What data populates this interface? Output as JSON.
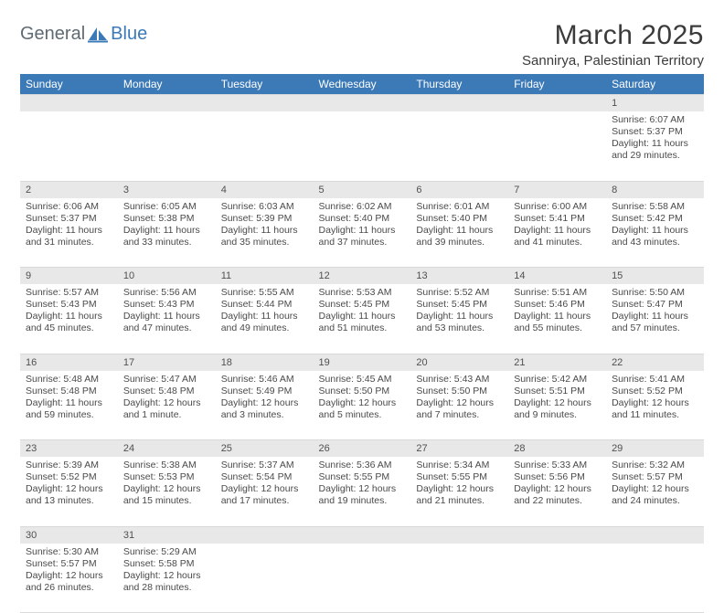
{
  "logo": {
    "text1": "General",
    "text2": "Blue",
    "brand_color": "#3b79b7",
    "gray_color": "#5f6a72"
  },
  "title": "March 2025",
  "location": "Sannirya, Palestinian Territory",
  "header_color": "#3b79b7",
  "header_text_color": "#ffffff",
  "day_label_bg": "#e8e8e8",
  "border_color": "#d9d9d9",
  "text_color": "#4a4a4a",
  "days_of_week": [
    "Sunday",
    "Monday",
    "Tuesday",
    "Wednesday",
    "Thursday",
    "Friday",
    "Saturday"
  ],
  "weeks": [
    [
      null,
      null,
      null,
      null,
      null,
      null,
      {
        "n": "1",
        "sunrise": "6:07 AM",
        "sunset": "5:37 PM",
        "daylight": "11 hours and 29 minutes."
      }
    ],
    [
      {
        "n": "2",
        "sunrise": "6:06 AM",
        "sunset": "5:37 PM",
        "daylight": "11 hours and 31 minutes."
      },
      {
        "n": "3",
        "sunrise": "6:05 AM",
        "sunset": "5:38 PM",
        "daylight": "11 hours and 33 minutes."
      },
      {
        "n": "4",
        "sunrise": "6:03 AM",
        "sunset": "5:39 PM",
        "daylight": "11 hours and 35 minutes."
      },
      {
        "n": "5",
        "sunrise": "6:02 AM",
        "sunset": "5:40 PM",
        "daylight": "11 hours and 37 minutes."
      },
      {
        "n": "6",
        "sunrise": "6:01 AM",
        "sunset": "5:40 PM",
        "daylight": "11 hours and 39 minutes."
      },
      {
        "n": "7",
        "sunrise": "6:00 AM",
        "sunset": "5:41 PM",
        "daylight": "11 hours and 41 minutes."
      },
      {
        "n": "8",
        "sunrise": "5:58 AM",
        "sunset": "5:42 PM",
        "daylight": "11 hours and 43 minutes."
      }
    ],
    [
      {
        "n": "9",
        "sunrise": "5:57 AM",
        "sunset": "5:43 PM",
        "daylight": "11 hours and 45 minutes."
      },
      {
        "n": "10",
        "sunrise": "5:56 AM",
        "sunset": "5:43 PM",
        "daylight": "11 hours and 47 minutes."
      },
      {
        "n": "11",
        "sunrise": "5:55 AM",
        "sunset": "5:44 PM",
        "daylight": "11 hours and 49 minutes."
      },
      {
        "n": "12",
        "sunrise": "5:53 AM",
        "sunset": "5:45 PM",
        "daylight": "11 hours and 51 minutes."
      },
      {
        "n": "13",
        "sunrise": "5:52 AM",
        "sunset": "5:45 PM",
        "daylight": "11 hours and 53 minutes."
      },
      {
        "n": "14",
        "sunrise": "5:51 AM",
        "sunset": "5:46 PM",
        "daylight": "11 hours and 55 minutes."
      },
      {
        "n": "15",
        "sunrise": "5:50 AM",
        "sunset": "5:47 PM",
        "daylight": "11 hours and 57 minutes."
      }
    ],
    [
      {
        "n": "16",
        "sunrise": "5:48 AM",
        "sunset": "5:48 PM",
        "daylight": "11 hours and 59 minutes."
      },
      {
        "n": "17",
        "sunrise": "5:47 AM",
        "sunset": "5:48 PM",
        "daylight": "12 hours and 1 minute."
      },
      {
        "n": "18",
        "sunrise": "5:46 AM",
        "sunset": "5:49 PM",
        "daylight": "12 hours and 3 minutes."
      },
      {
        "n": "19",
        "sunrise": "5:45 AM",
        "sunset": "5:50 PM",
        "daylight": "12 hours and 5 minutes."
      },
      {
        "n": "20",
        "sunrise": "5:43 AM",
        "sunset": "5:50 PM",
        "daylight": "12 hours and 7 minutes."
      },
      {
        "n": "21",
        "sunrise": "5:42 AM",
        "sunset": "5:51 PM",
        "daylight": "12 hours and 9 minutes."
      },
      {
        "n": "22",
        "sunrise": "5:41 AM",
        "sunset": "5:52 PM",
        "daylight": "12 hours and 11 minutes."
      }
    ],
    [
      {
        "n": "23",
        "sunrise": "5:39 AM",
        "sunset": "5:52 PM",
        "daylight": "12 hours and 13 minutes."
      },
      {
        "n": "24",
        "sunrise": "5:38 AM",
        "sunset": "5:53 PM",
        "daylight": "12 hours and 15 minutes."
      },
      {
        "n": "25",
        "sunrise": "5:37 AM",
        "sunset": "5:54 PM",
        "daylight": "12 hours and 17 minutes."
      },
      {
        "n": "26",
        "sunrise": "5:36 AM",
        "sunset": "5:55 PM",
        "daylight": "12 hours and 19 minutes."
      },
      {
        "n": "27",
        "sunrise": "5:34 AM",
        "sunset": "5:55 PM",
        "daylight": "12 hours and 21 minutes."
      },
      {
        "n": "28",
        "sunrise": "5:33 AM",
        "sunset": "5:56 PM",
        "daylight": "12 hours and 22 minutes."
      },
      {
        "n": "29",
        "sunrise": "5:32 AM",
        "sunset": "5:57 PM",
        "daylight": "12 hours and 24 minutes."
      }
    ],
    [
      {
        "n": "30",
        "sunrise": "5:30 AM",
        "sunset": "5:57 PM",
        "daylight": "12 hours and 26 minutes."
      },
      {
        "n": "31",
        "sunrise": "5:29 AM",
        "sunset": "5:58 PM",
        "daylight": "12 hours and 28 minutes."
      },
      null,
      null,
      null,
      null,
      null
    ]
  ],
  "labels": {
    "sunrise": "Sunrise:",
    "sunset": "Sunset:",
    "daylight": "Daylight:"
  }
}
